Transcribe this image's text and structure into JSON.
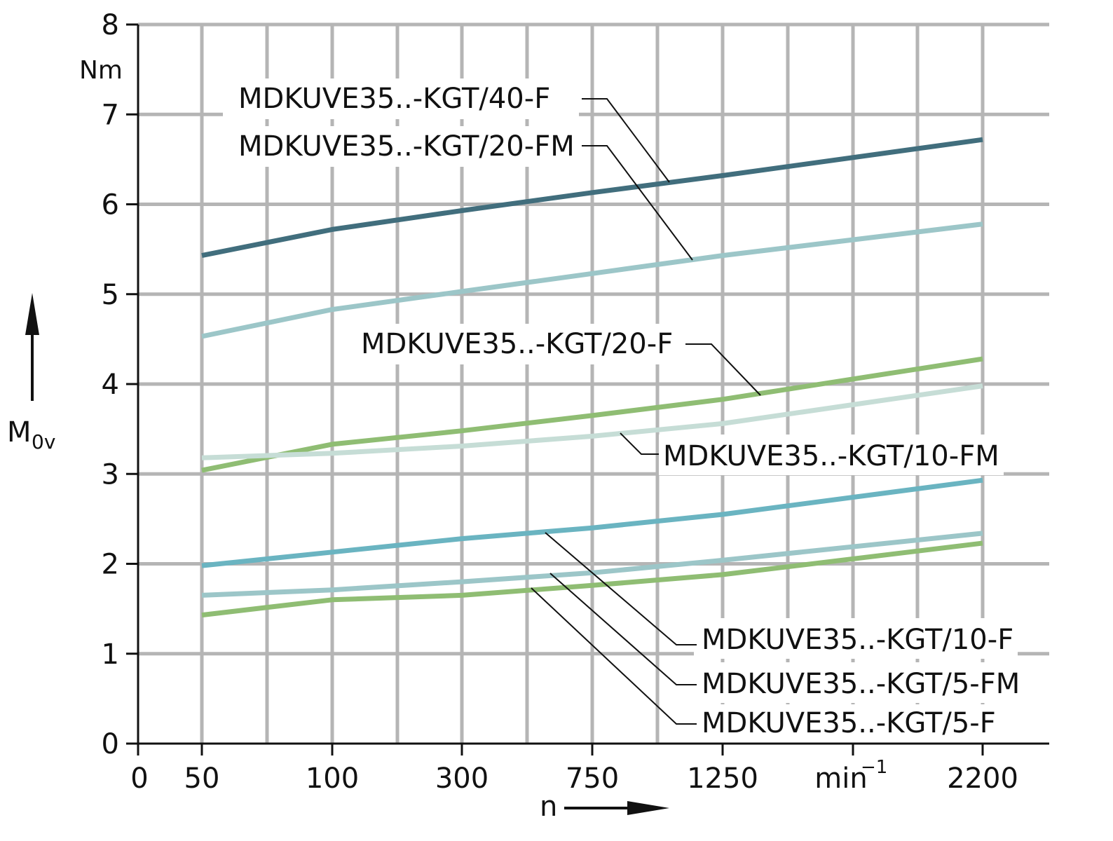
{
  "chart_data": {
    "type": "line",
    "x_tick_labels": [
      "0",
      "50",
      "100",
      "300",
      "750",
      "1250",
      "min",
      "2200"
    ],
    "x_unit_sup": "−1",
    "xlabel": "n",
    "ylabel_main": "M",
    "ylabel_sub": "0v",
    "y_ticks": [
      0,
      1,
      2,
      3,
      4,
      5,
      6,
      7,
      8
    ],
    "y_unit": "Nm",
    "ylim": [
      0,
      8
    ],
    "categories": [
      50,
      100,
      300,
      750,
      1250,
      2200
    ],
    "grid": true,
    "series": [
      {
        "name": "MDKUVE35..-KGT/40-F",
        "color": "#416e7d",
        "values": [
          5.43,
          5.72,
          5.93,
          6.13,
          6.32,
          6.72
        ]
      },
      {
        "name": "MDKUVE35..-KGT/20-FM",
        "color": "#9cc6c8",
        "values": [
          4.53,
          4.83,
          5.03,
          5.23,
          5.43,
          5.78
        ]
      },
      {
        "name": "MDKUVE35..-KGT/20-F",
        "color": "#8fbd73",
        "values": [
          3.04,
          3.33,
          3.48,
          3.65,
          3.83,
          4.28
        ]
      },
      {
        "name": "MDKUVE35..-KGT/10-FM",
        "color": "#c6ddd6",
        "values": [
          3.18,
          3.23,
          3.31,
          3.42,
          3.56,
          3.98
        ]
      },
      {
        "name": "MDKUVE35..-KGT/10-F",
        "color": "#6ab4c1",
        "values": [
          1.98,
          2.13,
          2.28,
          2.4,
          2.55,
          2.93
        ]
      },
      {
        "name": "MDKUVE35..-KGT/5-FM",
        "color": "#9cc6c8",
        "values": [
          1.65,
          1.71,
          1.8,
          1.9,
          2.04,
          2.34
        ]
      },
      {
        "name": "MDKUVE35..-KGT/5-F",
        "color": "#8fbd73",
        "values": [
          1.43,
          1.6,
          1.65,
          1.76,
          1.88,
          2.23
        ]
      }
    ]
  },
  "style": {
    "grid_color": "#b5b5b5",
    "axis_color": "#111111"
  }
}
